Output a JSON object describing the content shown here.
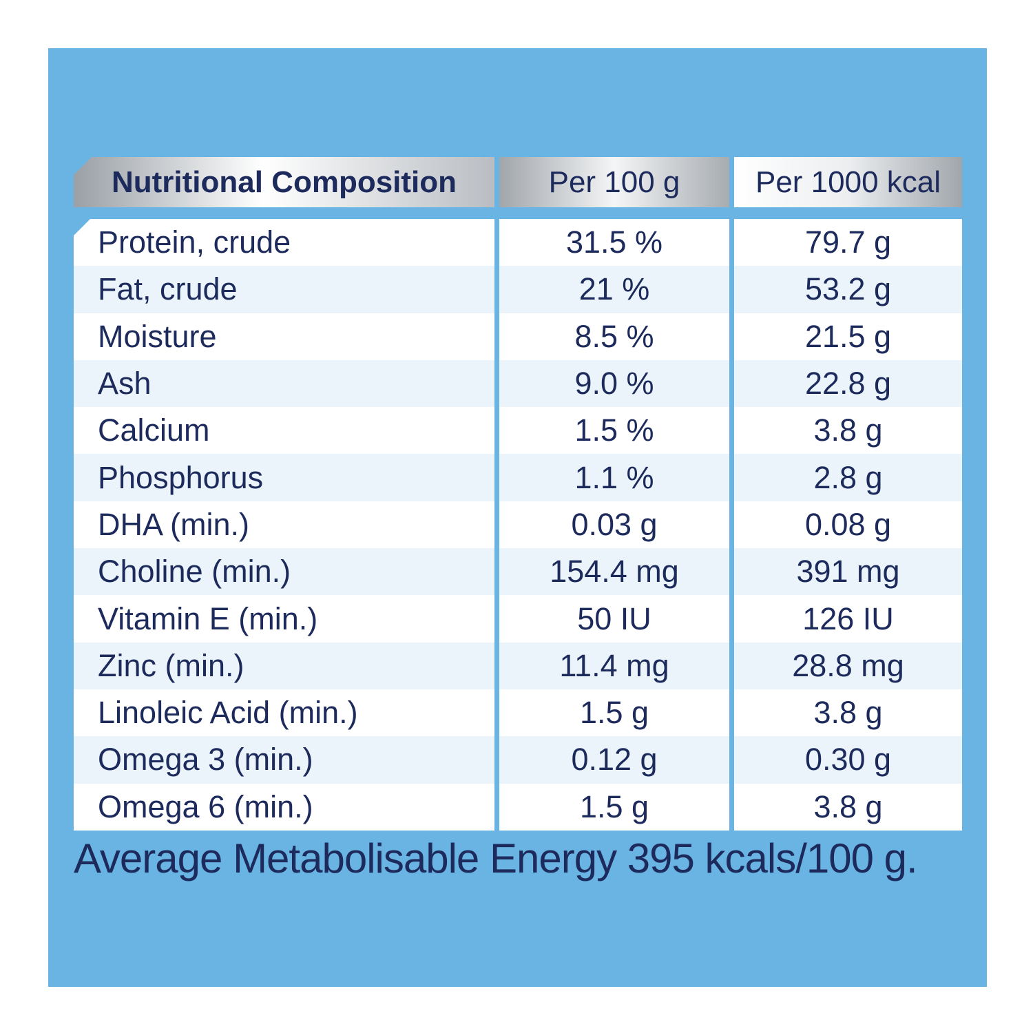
{
  "table": {
    "headers": [
      "Nutritional Composition",
      "Per 100 g",
      "Per 1000 kcal"
    ],
    "rows": [
      {
        "nutrient": "Protein, crude",
        "per_100g": "31.5 %",
        "per_1000kcal": "79.7 g"
      },
      {
        "nutrient": "Fat, crude",
        "per_100g": "21 %",
        "per_1000kcal": "53.2 g"
      },
      {
        "nutrient": "Moisture",
        "per_100g": "8.5 %",
        "per_1000kcal": "21.5 g"
      },
      {
        "nutrient": "Ash",
        "per_100g": "9.0 %",
        "per_1000kcal": "22.8 g"
      },
      {
        "nutrient": "Calcium",
        "per_100g": "1.5 %",
        "per_1000kcal": "3.8 g"
      },
      {
        "nutrient": "Phosphorus",
        "per_100g": "1.1 %",
        "per_1000kcal": "2.8 g"
      },
      {
        "nutrient": "DHA (min.)",
        "per_100g": "0.03 g",
        "per_1000kcal": "0.08 g"
      },
      {
        "nutrient": "Choline (min.)",
        "per_100g": "154.4 mg",
        "per_1000kcal": "391 mg"
      },
      {
        "nutrient": "Vitamin E (min.)",
        "per_100g": "50 IU",
        "per_1000kcal": "126 IU"
      },
      {
        "nutrient": "Zinc (min.)",
        "per_100g": "11.4 mg",
        "per_1000kcal": "28.8 mg"
      },
      {
        "nutrient": "Linoleic Acid (min.)",
        "per_100g": "1.5 g",
        "per_1000kcal": "3.8 g"
      },
      {
        "nutrient": "Omega 3 (min.)",
        "per_100g": "0.12 g",
        "per_1000kcal": "0.30 g"
      },
      {
        "nutrient": "Omega 6 (min.)",
        "per_100g": "1.5 g",
        "per_1000kcal": "3.8 g"
      }
    ]
  },
  "footer": "Average Metabolisable Energy 395 kcals/100 g.",
  "colors": {
    "panel_background": "#6ab4e4",
    "text": "#1d2a5c",
    "row_alt": "#eaf4fa",
    "row": "#ffffff"
  }
}
